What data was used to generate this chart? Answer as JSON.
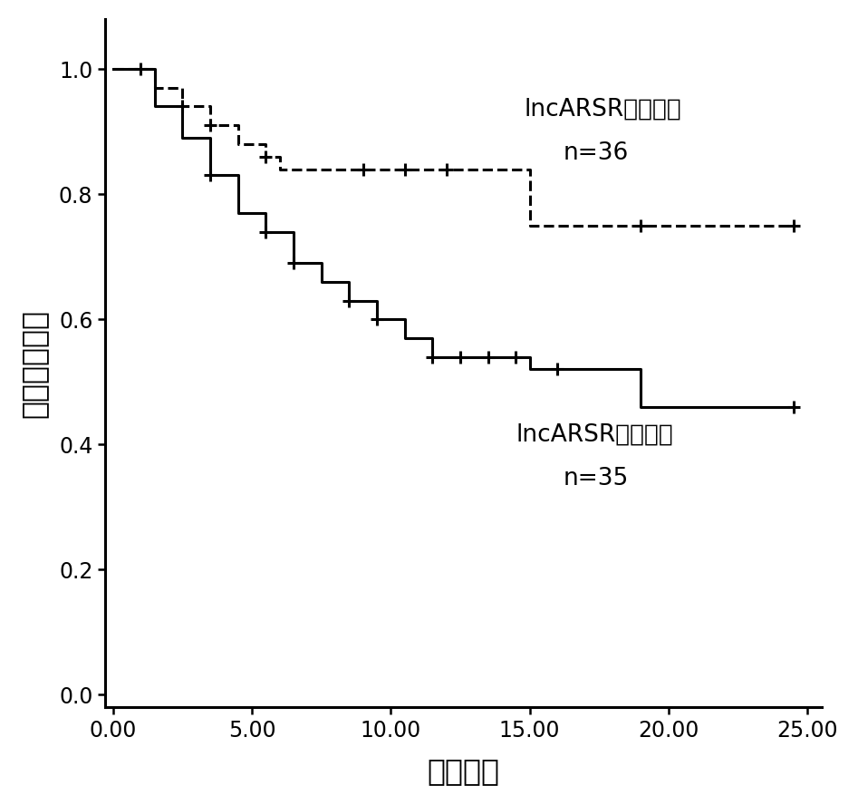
{
  "title": "",
  "xlabel": "治疗时间",
  "ylabel": "无进展生存期",
  "xlim": [
    -0.3,
    25.5
  ],
  "ylim": [
    -0.02,
    1.08
  ],
  "xticks": [
    0.0,
    5.0,
    10.0,
    15.0,
    20.0,
    25.0
  ],
  "yticks": [
    0.0,
    0.2,
    0.4,
    0.6,
    0.8,
    1.0
  ],
  "high_label": "lncARSR高浓度组",
  "high_n_label": "n=36",
  "low_label": "lncARSR低浓度组",
  "low_n_label": "n=35",
  "high_x": [
    0.0,
    1.0,
    1.5,
    2.5,
    3.5,
    4.5,
    5.5,
    6.0,
    7.5,
    9.0,
    10.5,
    12.0,
    13.5,
    15.0,
    19.0,
    24.5
  ],
  "high_y": [
    1.0,
    1.0,
    0.97,
    0.94,
    0.91,
    0.88,
    0.86,
    0.84,
    0.84,
    0.84,
    0.84,
    0.84,
    0.84,
    0.75,
    0.75,
    0.75
  ],
  "high_censored_x": [
    1.0,
    2.5,
    3.5,
    5.5,
    9.0,
    10.5,
    12.0,
    19.0,
    24.5
  ],
  "high_censored_y": [
    1.0,
    0.94,
    0.91,
    0.86,
    0.84,
    0.84,
    0.84,
    0.75,
    0.75
  ],
  "low_x": [
    0.0,
    0.8,
    1.5,
    2.5,
    3.5,
    4.5,
    5.5,
    6.5,
    7.5,
    8.5,
    9.5,
    10.5,
    11.5,
    12.5,
    13.5,
    14.5,
    15.0,
    16.0,
    19.0,
    24.5
  ],
  "low_y": [
    1.0,
    1.0,
    0.94,
    0.89,
    0.83,
    0.77,
    0.74,
    0.69,
    0.66,
    0.63,
    0.6,
    0.57,
    0.54,
    0.54,
    0.54,
    0.54,
    0.52,
    0.52,
    0.46,
    0.46
  ],
  "low_censored_x": [
    3.5,
    5.5,
    6.5,
    8.5,
    9.5,
    11.5,
    12.5,
    13.5,
    14.5,
    16.0,
    24.5
  ],
  "low_censored_y": [
    0.83,
    0.74,
    0.69,
    0.63,
    0.6,
    0.54,
    0.54,
    0.54,
    0.54,
    0.52,
    0.46
  ],
  "background_color": "#ffffff",
  "line_color": "#000000",
  "text_color": "#000000",
  "xlabel_fontsize": 24,
  "ylabel_fontsize": 24,
  "tick_fontsize": 17,
  "annotation_fontsize": 19
}
